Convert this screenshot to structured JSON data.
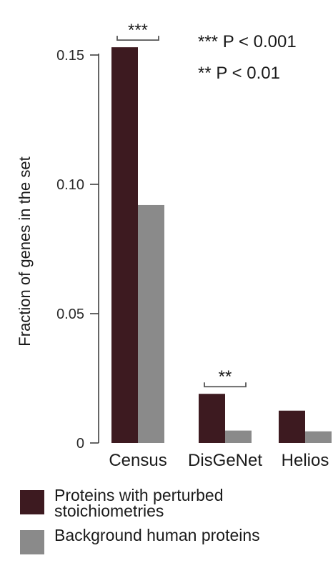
{
  "chart_data": {
    "type": "bar",
    "categories": [
      "Census",
      "DisGeNet",
      "Helios"
    ],
    "series": [
      {
        "name": "Proteins with perturbed stoichiometries",
        "color": "#3d1a20",
        "values": [
          0.153,
          0.019,
          0.0125
        ]
      },
      {
        "name": "Background human proteins",
        "color": "#8a8a8a",
        "values": [
          0.092,
          0.0048,
          0.0045
        ]
      }
    ],
    "ylabel": "Fraction of genes in the set",
    "xlabel": "",
    "ylim": [
      0,
      0.15
    ],
    "yticks": [
      {
        "value": 0,
        "label": "0"
      },
      {
        "value": 0.05,
        "label": "0.05"
      },
      {
        "value": 0.1,
        "label": "0.10"
      },
      {
        "value": 0.15,
        "label": "0.15"
      }
    ],
    "significance": [
      {
        "category": "Census",
        "label": "***"
      },
      {
        "category": "DisGeNet",
        "label": "**"
      }
    ],
    "annotations": [
      {
        "stars": "***",
        "text": "P < 0.001"
      },
      {
        "stars": "**",
        "text": "P < 0.01"
      }
    ],
    "grid": false,
    "legend_position": "bottom"
  }
}
